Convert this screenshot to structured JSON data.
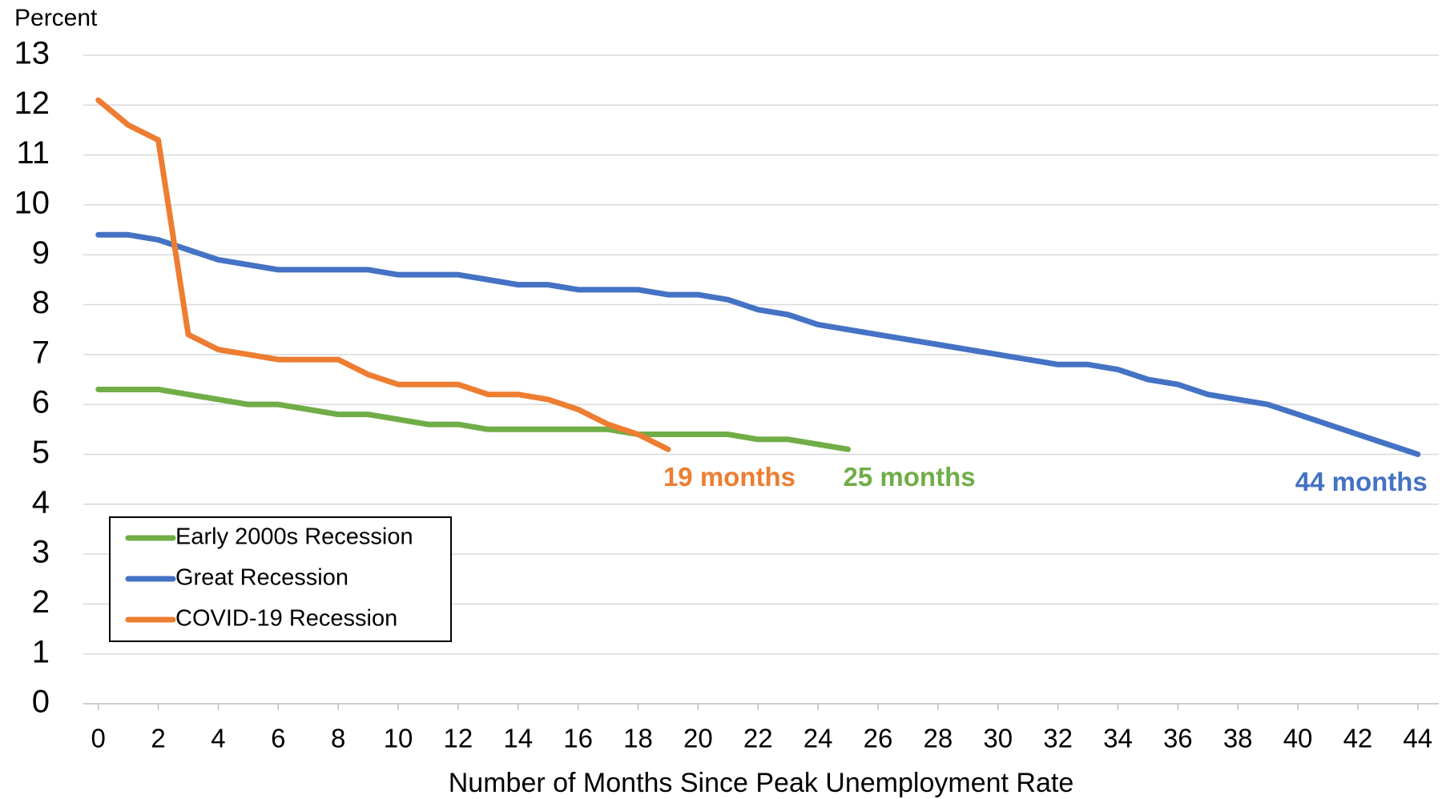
{
  "chart_data": {
    "type": "line",
    "y_axis_label": "Percent",
    "x_axis_label": "Number of Months Since Peak Unemployment Rate",
    "x": [
      0,
      1,
      2,
      3,
      4,
      5,
      6,
      7,
      8,
      9,
      10,
      11,
      12,
      13,
      14,
      15,
      16,
      17,
      18,
      19,
      20,
      21,
      22,
      23,
      24,
      25,
      26,
      27,
      28,
      29,
      30,
      31,
      32,
      33,
      34,
      35,
      36,
      37,
      38,
      39,
      40,
      41,
      42,
      43,
      44
    ],
    "series": [
      {
        "name": "Early 2000s Recession",
        "color": "#70ad47",
        "label": "25 months",
        "values": [
          6.3,
          6.3,
          6.3,
          6.2,
          6.1,
          6.0,
          6.0,
          5.9,
          5.8,
          5.8,
          5.7,
          5.6,
          5.6,
          5.5,
          5.5,
          5.5,
          5.5,
          5.5,
          5.4,
          5.4,
          5.4,
          5.4,
          5.3,
          5.3,
          5.2,
          5.1,
          null,
          null,
          null,
          null,
          null,
          null,
          null,
          null,
          null,
          null,
          null,
          null,
          null,
          null,
          null,
          null,
          null,
          null,
          null
        ]
      },
      {
        "name": "Great Recession",
        "color": "#4472c4",
        "label": "44 months",
        "values": [
          9.4,
          9.4,
          9.3,
          9.1,
          8.9,
          8.8,
          8.7,
          8.7,
          8.7,
          8.7,
          8.6,
          8.6,
          8.6,
          8.5,
          8.4,
          8.4,
          8.3,
          8.3,
          8.3,
          8.2,
          8.2,
          8.1,
          7.9,
          7.8,
          7.6,
          7.5,
          7.4,
          7.3,
          7.2,
          7.1,
          7.0,
          6.9,
          6.8,
          6.8,
          6.7,
          6.5,
          6.4,
          6.2,
          6.1,
          6.0,
          5.8,
          5.6,
          5.4,
          5.2,
          5.0
        ]
      },
      {
        "name": "COVID-19 Recession",
        "color": "#ed7d31",
        "label": "19 months",
        "values": [
          12.1,
          11.6,
          11.3,
          7.4,
          7.1,
          7.0,
          6.9,
          6.9,
          6.9,
          6.6,
          6.4,
          6.4,
          6.4,
          6.2,
          6.2,
          6.1,
          5.9,
          5.6,
          5.4,
          5.1,
          null,
          null,
          null,
          null,
          null,
          null,
          null,
          null,
          null,
          null,
          null,
          null,
          null,
          null,
          null,
          null,
          null,
          null,
          null,
          null,
          null,
          null,
          null,
          null,
          null
        ]
      }
    ],
    "xlim": [
      -0.5,
      44.7
    ],
    "xticks": [
      0,
      2,
      4,
      6,
      8,
      10,
      12,
      14,
      16,
      18,
      20,
      22,
      24,
      26,
      28,
      30,
      32,
      34,
      36,
      38,
      40,
      42,
      44
    ],
    "ylim": [
      0,
      13
    ],
    "yticks": [
      0,
      1,
      2,
      3,
      4,
      5,
      6,
      7,
      8,
      9,
      10,
      11,
      12,
      13
    ],
    "grid": true,
    "legend": "lower left"
  }
}
